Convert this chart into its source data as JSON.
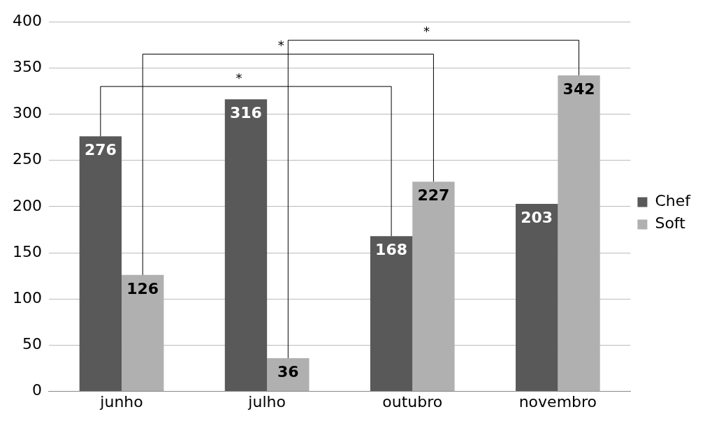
{
  "chart_data": {
    "type": "bar",
    "categories": [
      "junho",
      "julho",
      "outubro",
      "novembro"
    ],
    "series": [
      {
        "name": "Chef",
        "color": "#595959",
        "values": [
          276,
          316,
          168,
          203
        ]
      },
      {
        "name": "Soft",
        "color": "#b0b0b0",
        "values": [
          126,
          36,
          227,
          342
        ]
      }
    ],
    "ylim": [
      0,
      400
    ],
    "yticks": [
      0,
      50,
      100,
      150,
      200,
      250,
      300,
      350,
      400
    ],
    "grid": "y",
    "legend": "right",
    "data_labels": true,
    "annotations": [
      "*",
      "*",
      "*"
    ]
  }
}
